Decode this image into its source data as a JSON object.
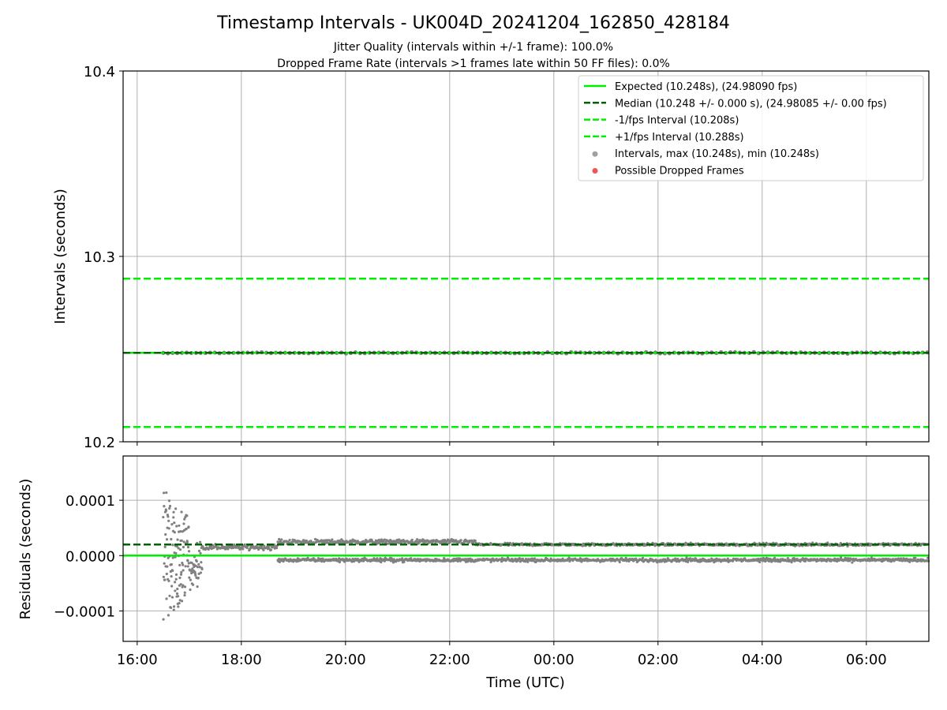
{
  "chart_data": [
    {
      "type": "scatter",
      "title": "Timestamp Intervals - UK004D_20241204_162850_428184",
      "subtitle_lines": [
        "Jitter Quality (intervals within +/-1 frame): 100.0%",
        "Dropped Frame Rate (intervals >1 frames late within 50 FF files): 0.0%"
      ],
      "xlabel": "",
      "ylabel": "Intervals (seconds)",
      "xlim": [
        -0.27,
        15.2
      ],
      "ylim": [
        10.2,
        10.4
      ],
      "y_ticks": [
        {
          "value": 10.2,
          "label": "10.2"
        },
        {
          "value": 10.3,
          "label": "10.3"
        },
        {
          "value": 10.4,
          "label": "10.4"
        }
      ],
      "grid": true,
      "legend_position": "upper right",
      "legend": [
        {
          "label": "Expected (10.248s), (24.98090 fps)",
          "style": "solid-line",
          "color": "#00ee00"
        },
        {
          "label": "Median (10.248 +/- 0.000 s), (24.98085 +/- 0.00 fps)",
          "style": "dashed-line",
          "color": "#006400"
        },
        {
          "label": "-1/fps Interval (10.208s)",
          "style": "dashed-line",
          "color": "#00ee00"
        },
        {
          "label": "+1/fps Interval (10.288s)",
          "style": "dashed-line",
          "color": "#00ee00"
        },
        {
          "label": "Intervals, max (10.248s), min (10.248s)",
          "style": "dot",
          "color": "#a0a0a0"
        },
        {
          "label": "Possible Dropped Frames",
          "style": "dot",
          "color": "#ee5555"
        }
      ],
      "series": [
        {
          "name": "Expected (10.248s), (24.98090 fps)",
          "kind": "hline",
          "y": 10.248,
          "color": "#00ee00"
        },
        {
          "name": "Median (10.248 +/- 0.000 s), (24.98085 +/- 0.00 fps)",
          "kind": "hline-dashed",
          "y": 10.248,
          "color": "#006400"
        },
        {
          "name": "-1/fps Interval (10.208s)",
          "kind": "hline-dashed",
          "y": 10.208,
          "color": "#00ee00"
        },
        {
          "name": "+1/fps Interval (10.288s)",
          "kind": "hline-dashed",
          "y": 10.288,
          "color": "#00ee00"
        },
        {
          "name": "Intervals, max (10.248s), min (10.248s)",
          "kind": "points",
          "y": 10.248,
          "x_range": [
            0.5,
            15.2
          ],
          "color": "#808080"
        }
      ]
    },
    {
      "type": "scatter",
      "title": "",
      "xlabel": "Time (UTC)",
      "ylabel": "Residuals (seconds)",
      "x_unit": "hours since 16:00 UTC",
      "xlim": [
        -0.27,
        15.2
      ],
      "ylim": [
        -0.000155,
        0.00018
      ],
      "x_ticks": [
        {
          "value": 0,
          "label": "16:00"
        },
        {
          "value": 2,
          "label": "18:00"
        },
        {
          "value": 4,
          "label": "20:00"
        },
        {
          "value": 6,
          "label": "22:00"
        },
        {
          "value": 8,
          "label": "00:00"
        },
        {
          "value": 10,
          "label": "02:00"
        },
        {
          "value": 12,
          "label": "04:00"
        },
        {
          "value": 14,
          "label": "06:00"
        }
      ],
      "y_ticks": [
        {
          "value": -0.0001,
          "label": "−0.0001"
        },
        {
          "value": 0,
          "label": "0.0000"
        },
        {
          "value": 0.0001,
          "label": "0.0001"
        }
      ],
      "grid": true,
      "series": [
        {
          "name": "Expected residual",
          "kind": "hline",
          "y": 0.0,
          "color": "#00ee00"
        },
        {
          "name": "Median residual",
          "kind": "hline-dashed",
          "y": 2e-05,
          "color": "#006400"
        },
        {
          "name": "Residuals",
          "kind": "points",
          "color": "#808080",
          "segments": [
            {
              "x_range": [
                0.5,
                1.0
              ],
              "y_center": 0.0,
              "spread": 0.00012
            },
            {
              "x_range": [
                1.0,
                1.25
              ],
              "y_center": -4e-05,
              "spread": 5e-05
            },
            {
              "x_range": [
                1.25,
                2.7
              ],
              "y_center": 1.5e-05,
              "spread": 1.2e-05
            },
            {
              "x_range": [
                2.7,
                6.5
              ],
              "y_center": 2.5e-05,
              "spread": 1e-05
            },
            {
              "x_range": [
                6.5,
                15.2
              ],
              "y_center": 2e-05,
              "spread": 6e-06
            },
            {
              "x_range": [
                2.7,
                15.2
              ],
              "y_center": -8e-06,
              "spread": 8e-06
            }
          ]
        }
      ]
    }
  ],
  "colors": {
    "expected": "#00ee00",
    "median": "#006400",
    "points": "#808080",
    "dropped": "#ee5555",
    "grid": "#b0b0b0"
  }
}
